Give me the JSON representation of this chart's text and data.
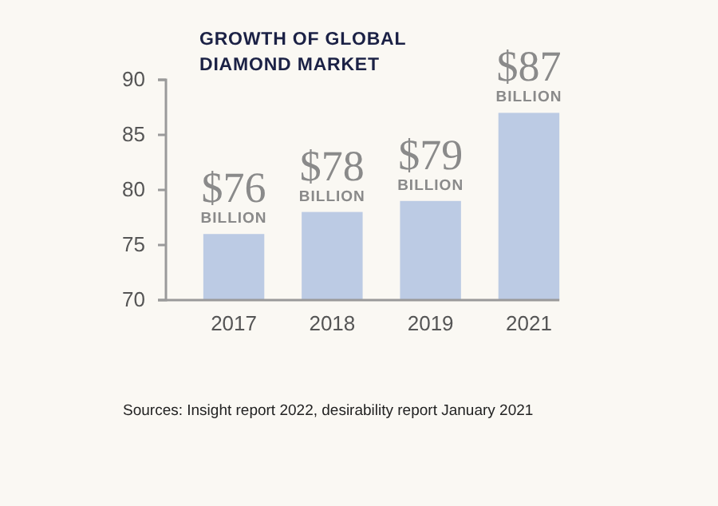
{
  "chart_data": {
    "type": "bar",
    "title": "GROWTH OF GLOBAL DIAMOND MARKET",
    "categories": [
      "2017",
      "2018",
      "2019",
      "2021"
    ],
    "values": [
      76,
      78,
      79,
      87
    ],
    "value_labels": [
      "$76 BILLION",
      "$78 BILLION",
      "$79 BILLION",
      "$87 BILLION"
    ],
    "color": "#bccbe4",
    "ylim": [
      70,
      90
    ],
    "yticks": [
      70,
      75,
      80,
      85,
      90
    ],
    "grid": false,
    "annotations": [
      "Sources: Insight report 2022, desirability report January 2021"
    ]
  }
}
